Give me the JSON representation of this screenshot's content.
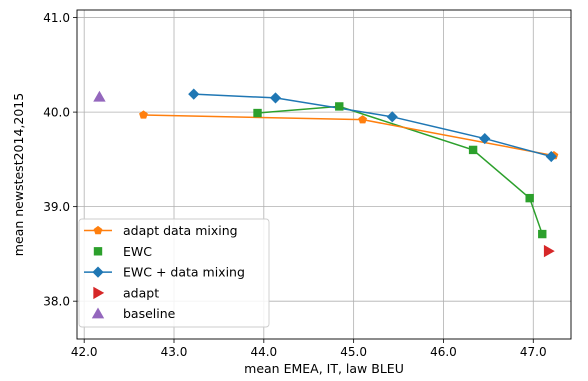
{
  "chart_data": {
    "type": "scatter",
    "xlabel": "mean EMEA, IT, law BLEU",
    "ylabel": "mean newstest2014,2015",
    "xlim": [
      41.92,
      47.42
    ],
    "ylim": [
      37.6,
      41.08
    ],
    "xticks": [
      "42.0",
      "43.0",
      "44.0",
      "45.0",
      "46.0",
      "47.0"
    ],
    "yticks": [
      "38.0",
      "39.0",
      "40.0",
      "41.0"
    ],
    "grid": true,
    "legend_position": "lower-left",
    "series": [
      {
        "name": "adapt data mixing",
        "style": "line-marker",
        "marker": "pentagon",
        "color": "#ff7f0e",
        "x": [
          42.66,
          45.1,
          47.23
        ],
        "y": [
          39.97,
          39.92,
          39.54
        ]
      },
      {
        "name": "EWC",
        "style": "marker",
        "marker": "square",
        "color": "#2ca02c",
        "x": [
          43.93,
          44.84,
          46.33,
          46.96,
          47.1
        ],
        "y": [
          39.99,
          40.06,
          39.6,
          39.09,
          38.71
        ]
      },
      {
        "name": "EWC + data mixing",
        "style": "line-marker",
        "marker": "diamond",
        "color": "#1f77b4",
        "x": [
          43.22,
          44.13,
          45.43,
          46.46,
          47.2
        ],
        "y": [
          40.19,
          40.15,
          39.95,
          39.72,
          39.53
        ]
      },
      {
        "name": "adapt",
        "style": "marker",
        "marker": "triangle-right",
        "color": "#d62728",
        "x": [
          47.17
        ],
        "y": [
          38.53
        ]
      },
      {
        "name": "baseline",
        "style": "marker",
        "marker": "triangle-up",
        "color": "#9467bd",
        "x": [
          42.17
        ],
        "y": [
          40.16
        ]
      }
    ],
    "ewc_line": {
      "color": "#2ca02c",
      "x": [
        43.93,
        44.84,
        46.33,
        46.96,
        47.1
      ],
      "y": [
        39.99,
        40.06,
        39.6,
        39.09,
        38.71
      ]
    }
  }
}
